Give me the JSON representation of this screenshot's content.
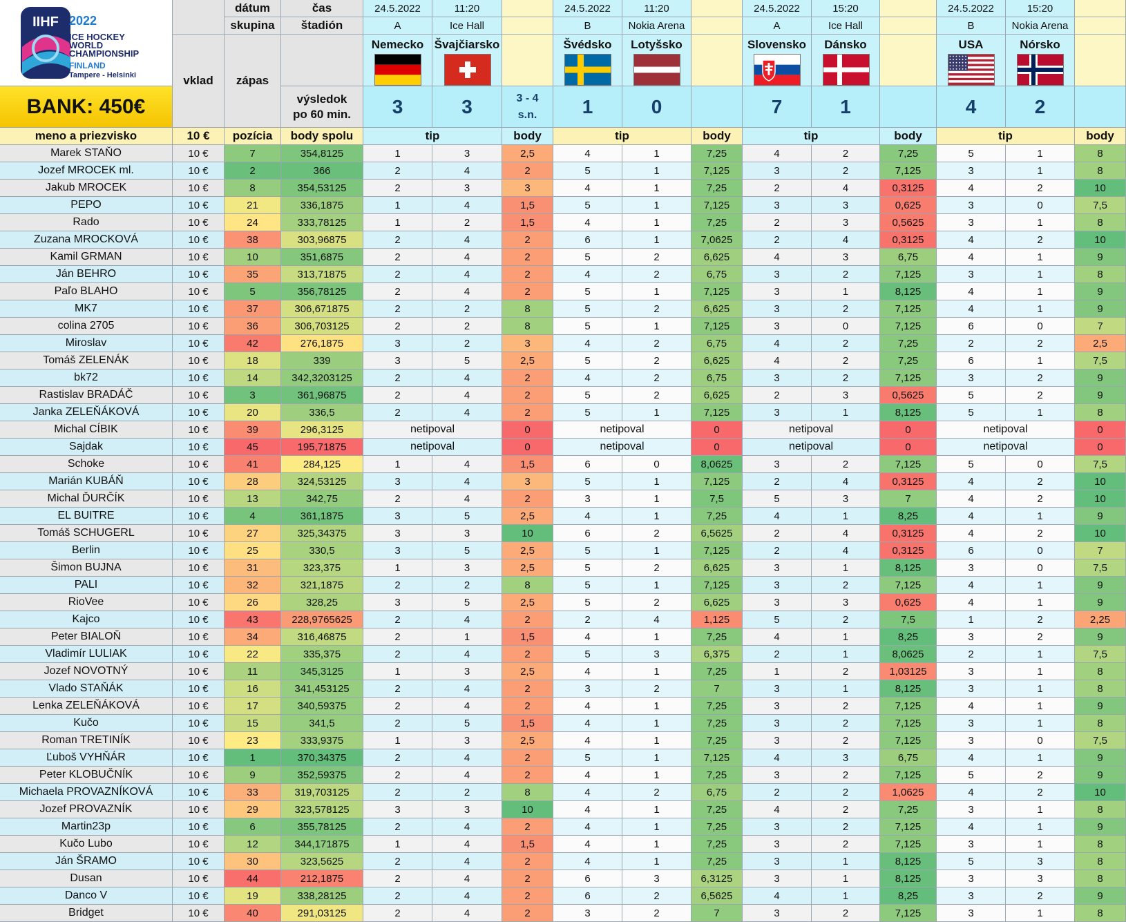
{
  "logo": {
    "brand": "IIHF",
    "year": "2022",
    "line1": "ICE HOCKEY",
    "line2": "WORLD",
    "line3": "CHAMPIONSHIP",
    "country": "FINLAND",
    "cities": "Tampere - Helsinki"
  },
  "bank": "BANK: 450€",
  "header": {
    "datum": "dátum",
    "cas": "čas",
    "skupina": "skupina",
    "stadion": "štadión",
    "vklad": "vklad",
    "zapas": "zápas",
    "vysledok1": "výsledok",
    "vysledok2": "po 60 min.",
    "name": "meno a priezvisko",
    "fee": "10 €",
    "pozicia": "pozícia",
    "body_spolu": "body spolu",
    "tip": "tip",
    "body": "body"
  },
  "matches": [
    {
      "date": "24.5.2022",
      "time": "11:20",
      "group": "A",
      "venue": "Ice Hall",
      "home": "Nemecko",
      "away": "Švajčiarsko",
      "home_flag": "germany",
      "away_flag": "switzerland",
      "score_home": "3",
      "score_away": "3",
      "extra1": "3 - 4",
      "extra2": "s.n."
    },
    {
      "date": "24.5.2022",
      "time": "11:20",
      "group": "B",
      "venue": "Nokia Arena",
      "home": "Švédsko",
      "away": "Lotyšsko",
      "home_flag": "sweden",
      "away_flag": "latvia",
      "score_home": "1",
      "score_away": "0",
      "extra1": "",
      "extra2": ""
    },
    {
      "date": "24.5.2022",
      "time": "15:20",
      "group": "A",
      "venue": "Ice Hall",
      "home": "Slovensko",
      "away": "Dánsko",
      "home_flag": "slovakia",
      "away_flag": "denmark",
      "score_home": "7",
      "score_away": "1",
      "extra1": "",
      "extra2": ""
    },
    {
      "date": "24.5.2022",
      "time": "15:20",
      "group": "B",
      "venue": "Nokia Arena",
      "home": "USA",
      "away": "Nórsko",
      "home_flag": "usa",
      "away_flag": "norway",
      "score_home": "4",
      "score_away": "2",
      "extra1": "",
      "extra2": ""
    }
  ],
  "colors": {
    "green": "#63be7b",
    "yellow": "#ffeb84",
    "red": "#f8696b",
    "grid": "#9aa7b0",
    "cyan": "#c9f3fb",
    "bank": "#ffd400"
  },
  "players": [
    {
      "name": "Marek STAŇO",
      "fee": "10 €",
      "pos": "7",
      "total": "354,8125",
      "m": [
        [
          "1",
          "3",
          "2,5"
        ],
        [
          "4",
          "1",
          "7,25"
        ],
        [
          "4",
          "2",
          "7,25"
        ],
        [
          "5",
          "1",
          "8"
        ]
      ]
    },
    {
      "name": "Jozef MROCEK ml.",
      "fee": "10 €",
      "pos": "2",
      "total": "366",
      "m": [
        [
          "2",
          "4",
          "2"
        ],
        [
          "5",
          "1",
          "7,125"
        ],
        [
          "3",
          "2",
          "7,125"
        ],
        [
          "3",
          "1",
          "8"
        ]
      ]
    },
    {
      "name": "Jakub MROCEK",
      "fee": "10 €",
      "pos": "8",
      "total": "354,53125",
      "m": [
        [
          "2",
          "3",
          "3"
        ],
        [
          "4",
          "1",
          "7,25"
        ],
        [
          "2",
          "4",
          "0,3125"
        ],
        [
          "4",
          "2",
          "10"
        ]
      ]
    },
    {
      "name": "PEPO",
      "fee": "10 €",
      "pos": "21",
      "total": "336,1875",
      "m": [
        [
          "1",
          "4",
          "1,5"
        ],
        [
          "5",
          "1",
          "7,125"
        ],
        [
          "3",
          "3",
          "0,625"
        ],
        [
          "3",
          "0",
          "7,5"
        ]
      ]
    },
    {
      "name": "Rado",
      "fee": "10 €",
      "pos": "24",
      "total": "333,78125",
      "m": [
        [
          "1",
          "2",
          "1,5"
        ],
        [
          "4",
          "1",
          "7,25"
        ],
        [
          "2",
          "3",
          "0,5625"
        ],
        [
          "3",
          "1",
          "8"
        ]
      ]
    },
    {
      "name": "Zuzana MROCKOVÁ",
      "fee": "10 €",
      "pos": "38",
      "total": "303,96875",
      "m": [
        [
          "2",
          "4",
          "2"
        ],
        [
          "6",
          "1",
          "7,0625"
        ],
        [
          "2",
          "4",
          "0,3125"
        ],
        [
          "4",
          "2",
          "10"
        ]
      ]
    },
    {
      "name": "Kamil GRMAN",
      "fee": "10 €",
      "pos": "10",
      "total": "351,6875",
      "m": [
        [
          "2",
          "4",
          "2"
        ],
        [
          "5",
          "2",
          "6,625"
        ],
        [
          "4",
          "3",
          "6,75"
        ],
        [
          "4",
          "1",
          "9"
        ]
      ]
    },
    {
      "name": "Ján BEHRO",
      "fee": "10 €",
      "pos": "35",
      "total": "313,71875",
      "m": [
        [
          "2",
          "4",
          "2"
        ],
        [
          "4",
          "2",
          "6,75"
        ],
        [
          "3",
          "2",
          "7,125"
        ],
        [
          "3",
          "1",
          "8"
        ]
      ]
    },
    {
      "name": "Paľo BLAHO",
      "fee": "10 €",
      "pos": "5",
      "total": "356,78125",
      "m": [
        [
          "2",
          "4",
          "2"
        ],
        [
          "5",
          "1",
          "7,125"
        ],
        [
          "3",
          "1",
          "8,125"
        ],
        [
          "4",
          "1",
          "9"
        ]
      ]
    },
    {
      "name": "MK7",
      "fee": "10 €",
      "pos": "37",
      "total": "306,671875",
      "m": [
        [
          "2",
          "2",
          "8"
        ],
        [
          "5",
          "2",
          "6,625"
        ],
        [
          "3",
          "2",
          "7,125"
        ],
        [
          "4",
          "1",
          "9"
        ]
      ]
    },
    {
      "name": "colina 2705",
      "fee": "10 €",
      "pos": "36",
      "total": "306,703125",
      "m": [
        [
          "2",
          "2",
          "8"
        ],
        [
          "5",
          "1",
          "7,125"
        ],
        [
          "3",
          "0",
          "7,125"
        ],
        [
          "6",
          "0",
          "7"
        ]
      ]
    },
    {
      "name": "Miroslav",
      "fee": "10 €",
      "pos": "42",
      "total": "276,1875",
      "m": [
        [
          "3",
          "2",
          "3"
        ],
        [
          "4",
          "2",
          "6,75"
        ],
        [
          "4",
          "2",
          "7,25"
        ],
        [
          "2",
          "2",
          "2,5"
        ]
      ]
    },
    {
      "name": "Tomáš ZELENÁK",
      "fee": "10 €",
      "pos": "18",
      "total": "339",
      "m": [
        [
          "3",
          "5",
          "2,5"
        ],
        [
          "5",
          "2",
          "6,625"
        ],
        [
          "4",
          "2",
          "7,25"
        ],
        [
          "6",
          "1",
          "7,5"
        ]
      ]
    },
    {
      "name": "bk72",
      "fee": "10 €",
      "pos": "14",
      "total": "342,3203125",
      "m": [
        [
          "2",
          "4",
          "2"
        ],
        [
          "4",
          "2",
          "6,75"
        ],
        [
          "3",
          "2",
          "7,125"
        ],
        [
          "3",
          "2",
          "9"
        ]
      ]
    },
    {
      "name": "Rastislav BRADÁČ",
      "fee": "10 €",
      "pos": "3",
      "total": "361,96875",
      "m": [
        [
          "2",
          "4",
          "2"
        ],
        [
          "5",
          "2",
          "6,625"
        ],
        [
          "2",
          "3",
          "0,5625"
        ],
        [
          "5",
          "2",
          "9"
        ]
      ]
    },
    {
      "name": "Janka ZELEŇÁKOVÁ",
      "fee": "10 €",
      "pos": "20",
      "total": "336,5",
      "m": [
        [
          "2",
          "4",
          "2"
        ],
        [
          "5",
          "1",
          "7,125"
        ],
        [
          "3",
          "1",
          "8,125"
        ],
        [
          "5",
          "1",
          "8"
        ]
      ]
    },
    {
      "name": "Michal CÍBIK",
      "fee": "10 €",
      "pos": "39",
      "total": "296,3125",
      "np": "netipoval",
      "m": [
        [
          "",
          "",
          "0"
        ],
        [
          "",
          "",
          "0"
        ],
        [
          "",
          "",
          "0"
        ],
        [
          "",
          "",
          "0"
        ]
      ]
    },
    {
      "name": "Sajdak",
      "fee": "10 €",
      "pos": "45",
      "total": "195,71875",
      "np": "netipoval",
      "m": [
        [
          "",
          "",
          "0"
        ],
        [
          "",
          "",
          "0"
        ],
        [
          "",
          "",
          "0"
        ],
        [
          "",
          "",
          "0"
        ]
      ]
    },
    {
      "name": "Schoke",
      "fee": "10 €",
      "pos": "41",
      "total": "284,125",
      "m": [
        [
          "1",
          "4",
          "1,5"
        ],
        [
          "6",
          "0",
          "8,0625"
        ],
        [
          "3",
          "2",
          "7,125"
        ],
        [
          "5",
          "0",
          "7,5"
        ]
      ]
    },
    {
      "name": "Marián KUBÁŇ",
      "fee": "10 €",
      "pos": "28",
      "total": "324,53125",
      "m": [
        [
          "3",
          "4",
          "3"
        ],
        [
          "5",
          "1",
          "7,125"
        ],
        [
          "2",
          "4",
          "0,3125"
        ],
        [
          "4",
          "2",
          "10"
        ]
      ]
    },
    {
      "name": "Michal ĎURČÍK",
      "fee": "10 €",
      "pos": "13",
      "total": "342,75",
      "m": [
        [
          "2",
          "4",
          "2"
        ],
        [
          "3",
          "1",
          "7,5"
        ],
        [
          "5",
          "3",
          "7"
        ],
        [
          "4",
          "2",
          "10"
        ]
      ]
    },
    {
      "name": "EL BUITRE",
      "fee": "10 €",
      "pos": "4",
      "total": "361,1875",
      "m": [
        [
          "3",
          "5",
          "2,5"
        ],
        [
          "4",
          "1",
          "7,25"
        ],
        [
          "4",
          "1",
          "8,25"
        ],
        [
          "4",
          "1",
          "9"
        ]
      ]
    },
    {
      "name": "Tomáš SCHUGERL",
      "fee": "10 €",
      "pos": "27",
      "total": "325,34375",
      "m": [
        [
          "3",
          "3",
          "10"
        ],
        [
          "6",
          "2",
          "6,5625"
        ],
        [
          "2",
          "4",
          "0,3125"
        ],
        [
          "4",
          "2",
          "10"
        ]
      ]
    },
    {
      "name": "Berlin",
      "fee": "10 €",
      "pos": "25",
      "total": "330,5",
      "m": [
        [
          "3",
          "5",
          "2,5"
        ],
        [
          "5",
          "1",
          "7,125"
        ],
        [
          "2",
          "4",
          "0,3125"
        ],
        [
          "6",
          "0",
          "7"
        ]
      ]
    },
    {
      "name": "Šimon BUJNA",
      "fee": "10 €",
      "pos": "31",
      "total": "323,375",
      "m": [
        [
          "1",
          "3",
          "2,5"
        ],
        [
          "5",
          "2",
          "6,625"
        ],
        [
          "3",
          "1",
          "8,125"
        ],
        [
          "3",
          "0",
          "7,5"
        ]
      ]
    },
    {
      "name": "PALI",
      "fee": "10 €",
      "pos": "32",
      "total": "321,1875",
      "m": [
        [
          "2",
          "2",
          "8"
        ],
        [
          "5",
          "1",
          "7,125"
        ],
        [
          "3",
          "2",
          "7,125"
        ],
        [
          "4",
          "1",
          "9"
        ]
      ]
    },
    {
      "name": "RioVee",
      "fee": "10 €",
      "pos": "26",
      "total": "328,25",
      "m": [
        [
          "3",
          "5",
          "2,5"
        ],
        [
          "5",
          "2",
          "6,625"
        ],
        [
          "3",
          "3",
          "0,625"
        ],
        [
          "4",
          "1",
          "9"
        ]
      ]
    },
    {
      "name": "Kajco",
      "fee": "10 €",
      "pos": "43",
      "total": "228,9765625",
      "m": [
        [
          "2",
          "4",
          "2"
        ],
        [
          "2",
          "4",
          "1,125"
        ],
        [
          "5",
          "2",
          "7,5"
        ],
        [
          "1",
          "2",
          "2,25"
        ]
      ]
    },
    {
      "name": "Peter BIALOŇ",
      "fee": "10 €",
      "pos": "34",
      "total": "316,46875",
      "m": [
        [
          "2",
          "1",
          "1,5"
        ],
        [
          "4",
          "1",
          "7,25"
        ],
        [
          "4",
          "1",
          "8,25"
        ],
        [
          "3",
          "2",
          "9"
        ]
      ]
    },
    {
      "name": "Vladimír LULIAK",
      "fee": "10 €",
      "pos": "22",
      "total": "335,375",
      "m": [
        [
          "2",
          "4",
          "2"
        ],
        [
          "5",
          "3",
          "6,375"
        ],
        [
          "2",
          "1",
          "8,0625"
        ],
        [
          "2",
          "1",
          "7,5"
        ]
      ]
    },
    {
      "name": "Jozef NOVOTNÝ",
      "fee": "10 €",
      "pos": "11",
      "total": "345,3125",
      "m": [
        [
          "1",
          "3",
          "2,5"
        ],
        [
          "4",
          "1",
          "7,25"
        ],
        [
          "1",
          "2",
          "1,03125"
        ],
        [
          "3",
          "1",
          "8"
        ]
      ]
    },
    {
      "name": "Vlado STAŇÁK",
      "fee": "10 €",
      "pos": "16",
      "total": "341,453125",
      "m": [
        [
          "2",
          "4",
          "2"
        ],
        [
          "3",
          "2",
          "7"
        ],
        [
          "3",
          "1",
          "8,125"
        ],
        [
          "3",
          "1",
          "8"
        ]
      ]
    },
    {
      "name": "Lenka ZELEŇÁKOVÁ",
      "fee": "10 €",
      "pos": "17",
      "total": "340,59375",
      "m": [
        [
          "2",
          "4",
          "2"
        ],
        [
          "4",
          "1",
          "7,25"
        ],
        [
          "3",
          "2",
          "7,125"
        ],
        [
          "4",
          "1",
          "9"
        ]
      ]
    },
    {
      "name": "Kučo",
      "fee": "10 €",
      "pos": "15",
      "total": "341,5",
      "m": [
        [
          "2",
          "5",
          "1,5"
        ],
        [
          "4",
          "1",
          "7,25"
        ],
        [
          "3",
          "2",
          "7,125"
        ],
        [
          "3",
          "1",
          "8"
        ]
      ]
    },
    {
      "name": "Roman TRETINÍK",
      "fee": "10 €",
      "pos": "23",
      "total": "333,9375",
      "m": [
        [
          "1",
          "3",
          "2,5"
        ],
        [
          "4",
          "1",
          "7,25"
        ],
        [
          "3",
          "2",
          "7,125"
        ],
        [
          "3",
          "0",
          "7,5"
        ]
      ]
    },
    {
      "name": "Ľuboš VYHŇÁR",
      "fee": "10 €",
      "pos": "1",
      "total": "370,34375",
      "m": [
        [
          "2",
          "4",
          "2"
        ],
        [
          "5",
          "1",
          "7,125"
        ],
        [
          "4",
          "3",
          "6,75"
        ],
        [
          "4",
          "1",
          "9"
        ]
      ]
    },
    {
      "name": "Peter KLOBUČNÍK",
      "fee": "10 €",
      "pos": "9",
      "total": "352,59375",
      "m": [
        [
          "2",
          "4",
          "2"
        ],
        [
          "4",
          "1",
          "7,25"
        ],
        [
          "3",
          "2",
          "7,125"
        ],
        [
          "5",
          "2",
          "9"
        ]
      ]
    },
    {
      "name": "Michaela PROVAZNÍKOVÁ",
      "fee": "10 €",
      "pos": "33",
      "total": "319,703125",
      "m": [
        [
          "2",
          "2",
          "8"
        ],
        [
          "4",
          "2",
          "6,75"
        ],
        [
          "2",
          "2",
          "1,0625"
        ],
        [
          "4",
          "2",
          "10"
        ]
      ]
    },
    {
      "name": "Jozef PROVAZNÍK",
      "fee": "10 €",
      "pos": "29",
      "total": "323,578125",
      "m": [
        [
          "3",
          "3",
          "10"
        ],
        [
          "4",
          "1",
          "7,25"
        ],
        [
          "4",
          "2",
          "7,25"
        ],
        [
          "3",
          "1",
          "8"
        ]
      ]
    },
    {
      "name": "Martin23p",
      "fee": "10 €",
      "pos": "6",
      "total": "355,78125",
      "m": [
        [
          "2",
          "4",
          "2"
        ],
        [
          "4",
          "1",
          "7,25"
        ],
        [
          "3",
          "2",
          "7,125"
        ],
        [
          "4",
          "1",
          "9"
        ]
      ]
    },
    {
      "name": "Kučo Lubo",
      "fee": "10 €",
      "pos": "12",
      "total": "344,171875",
      "m": [
        [
          "1",
          "4",
          "1,5"
        ],
        [
          "4",
          "1",
          "7,25"
        ],
        [
          "3",
          "2",
          "7,125"
        ],
        [
          "3",
          "1",
          "8"
        ]
      ]
    },
    {
      "name": "Ján ŠRAMO",
      "fee": "10 €",
      "pos": "30",
      "total": "323,5625",
      "m": [
        [
          "2",
          "4",
          "2"
        ],
        [
          "4",
          "1",
          "7,25"
        ],
        [
          "3",
          "1",
          "8,125"
        ],
        [
          "5",
          "3",
          "8"
        ]
      ]
    },
    {
      "name": "Dusan",
      "fee": "10 €",
      "pos": "44",
      "total": "212,1875",
      "m": [
        [
          "2",
          "4",
          "2"
        ],
        [
          "6",
          "3",
          "6,3125"
        ],
        [
          "3",
          "1",
          "8,125"
        ],
        [
          "3",
          "3",
          "8"
        ]
      ]
    },
    {
      "name": "Danco V",
      "fee": "10 €",
      "pos": "19",
      "total": "338,28125",
      "m": [
        [
          "2",
          "4",
          "2"
        ],
        [
          "6",
          "2",
          "6,5625"
        ],
        [
          "4",
          "1",
          "8,25"
        ],
        [
          "3",
          "2",
          "9"
        ]
      ]
    },
    {
      "name": "Bridget",
      "fee": "10 €",
      "pos": "40",
      "total": "291,03125",
      "m": [
        [
          "2",
          "4",
          "2"
        ],
        [
          "3",
          "2",
          "7"
        ],
        [
          "3",
          "2",
          "7,125"
        ],
        [
          "3",
          "1",
          "8"
        ]
      ]
    }
  ]
}
